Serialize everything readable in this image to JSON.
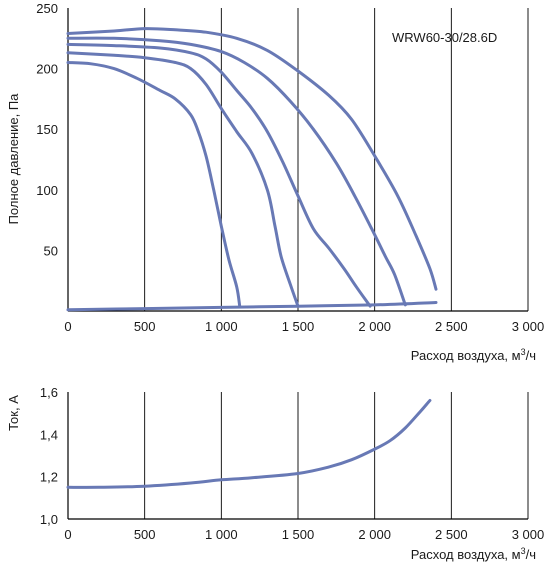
{
  "colors": {
    "curve": "#6879b5",
    "axis": "#000000",
    "text": "#1a1a1a"
  },
  "chart_data": [
    {
      "type": "line",
      "title": "",
      "annotation": "WRW60-30/28.6D",
      "xlabel_text": "Расход воздуха, м",
      "xlabel_sup": "3",
      "xlabel_suffix": "/ч",
      "ylabel": "Полное давление, Па",
      "xlim": [
        0,
        3000
      ],
      "ylim": [
        0,
        250
      ],
      "x_ticks": [
        0,
        500,
        1000,
        1500,
        2000,
        2500,
        3000
      ],
      "x_tick_labels": [
        "0",
        "500",
        "1 000",
        "1 500",
        "2 000",
        "2 500",
        "3 000"
      ],
      "y_ticks": [
        50,
        100,
        150,
        200,
        250
      ],
      "y_tick_labels": [
        "50",
        "100",
        "150",
        "200",
        "250"
      ],
      "grid": "vertical",
      "series": [
        {
          "points": [
            [
              0,
              229
            ],
            [
              300,
              231
            ],
            [
              500,
              233
            ],
            [
              700,
              232
            ],
            [
              900,
              230
            ],
            [
              1100,
              225
            ],
            [
              1300,
              215
            ],
            [
              1500,
              198
            ],
            [
              1700,
              178
            ],
            [
              1850,
              158
            ],
            [
              2000,
              128
            ],
            [
              2150,
              95
            ],
            [
              2270,
              62
            ],
            [
              2360,
              35
            ],
            [
              2400,
              18
            ]
          ]
        },
        {
          "points": [
            [
              0,
              225
            ],
            [
              300,
              225
            ],
            [
              600,
              223
            ],
            [
              800,
              220
            ],
            [
              1000,
              214
            ],
            [
              1150,
              205
            ],
            [
              1300,
              192
            ],
            [
              1450,
              173
            ],
            [
              1600,
              150
            ],
            [
              1750,
              122
            ],
            [
              1870,
              95
            ],
            [
              1980,
              68
            ],
            [
              2070,
              45
            ],
            [
              2130,
              30
            ],
            [
              2200,
              5
            ]
          ]
        },
        {
          "points": [
            [
              0,
              220
            ],
            [
              300,
              219
            ],
            [
              600,
              217
            ],
            [
              800,
              213
            ],
            [
              900,
              208
            ],
            [
              1000,
              197
            ],
            [
              1100,
              182
            ],
            [
              1200,
              167
            ],
            [
              1300,
              148
            ],
            [
              1400,
              123
            ],
            [
              1500,
              95
            ],
            [
              1600,
              68
            ],
            [
              1700,
              52
            ],
            [
              1800,
              35
            ],
            [
              1880,
              20
            ],
            [
              1970,
              4
            ]
          ]
        },
        {
          "points": [
            [
              0,
              213
            ],
            [
              300,
              211
            ],
            [
              500,
              209
            ],
            [
              700,
              205
            ],
            [
              800,
              200
            ],
            [
              900,
              187
            ],
            [
              1000,
              167
            ],
            [
              1100,
              148
            ],
            [
              1200,
              130
            ],
            [
              1300,
              100
            ],
            [
              1350,
              70
            ],
            [
              1390,
              45
            ],
            [
              1450,
              22
            ],
            [
              1500,
              4
            ]
          ]
        },
        {
          "points": [
            [
              0,
              205
            ],
            [
              150,
              204
            ],
            [
              300,
              200
            ],
            [
              450,
              192
            ],
            [
              600,
              182
            ],
            [
              700,
              175
            ],
            [
              800,
              162
            ],
            [
              850,
              148
            ],
            [
              900,
              128
            ],
            [
              950,
              100
            ],
            [
              1000,
              70
            ],
            [
              1050,
              42
            ],
            [
              1100,
              20
            ],
            [
              1120,
              4
            ]
          ]
        },
        {
          "points": [
            [
              0,
              1
            ],
            [
              500,
              2
            ],
            [
              1000,
              3
            ],
            [
              1500,
              4
            ],
            [
              2000,
              5
            ],
            [
              2400,
              7
            ]
          ]
        }
      ]
    },
    {
      "type": "line",
      "title": "",
      "xlabel_text": "Расход воздуха, м",
      "xlabel_sup": "3",
      "xlabel_suffix": "/ч",
      "ylabel": "Ток, А",
      "xlim": [
        0,
        3000
      ],
      "ylim": [
        1.0,
        1.6
      ],
      "x_ticks": [
        0,
        500,
        1000,
        1500,
        2000,
        2500,
        3000
      ],
      "x_tick_labels": [
        "0",
        "500",
        "1 000",
        "1 500",
        "2 000",
        "2 500",
        "3 000"
      ],
      "y_ticks": [
        1.0,
        1.2,
        1.4,
        1.6
      ],
      "y_tick_labels": [
        "1,0",
        "1,2",
        "1,4",
        "1,6"
      ],
      "grid": "vertical",
      "series": [
        {
          "points": [
            [
              0,
              1.15
            ],
            [
              200,
              1.15
            ],
            [
              500,
              1.155
            ],
            [
              800,
              1.17
            ],
            [
              1000,
              1.185
            ],
            [
              1200,
              1.195
            ],
            [
              1500,
              1.215
            ],
            [
              1700,
              1.245
            ],
            [
              1850,
              1.28
            ],
            [
              2000,
              1.33
            ],
            [
              2100,
              1.37
            ],
            [
              2200,
              1.43
            ],
            [
              2300,
              1.51
            ],
            [
              2360,
              1.56
            ]
          ]
        }
      ]
    }
  ]
}
